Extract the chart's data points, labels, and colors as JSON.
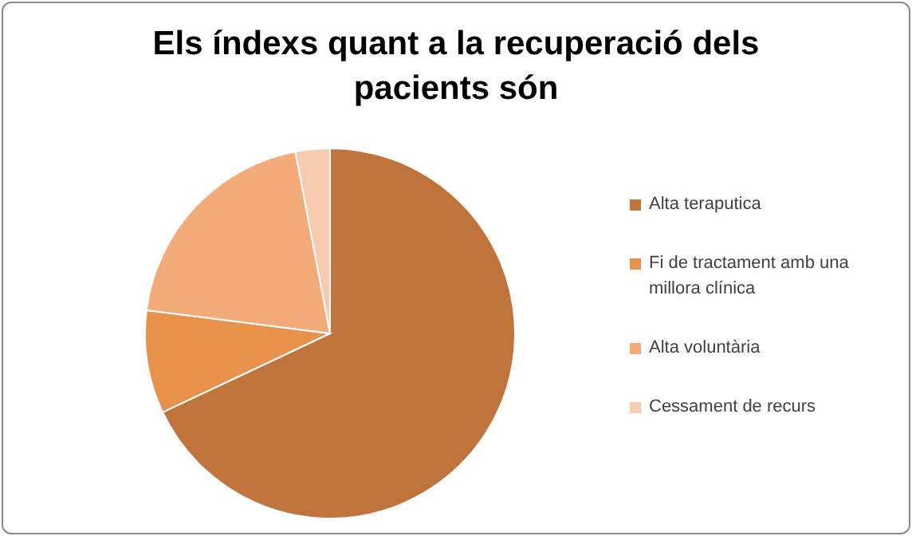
{
  "chart_data": {
    "type": "pie",
    "title": "Els índexs quant a la recuperació dels pacients són",
    "categories": [
      "Alta teraputica",
      "Fi de tractament amb una millora clínica",
      "Alta voluntària",
      "Cessament de recurs"
    ],
    "values": [
      68,
      9,
      20,
      3
    ],
    "colors": [
      "#c0733a",
      "#e8914a",
      "#f4ab7a",
      "#f8cbb0"
    ],
    "legend": "right"
  }
}
